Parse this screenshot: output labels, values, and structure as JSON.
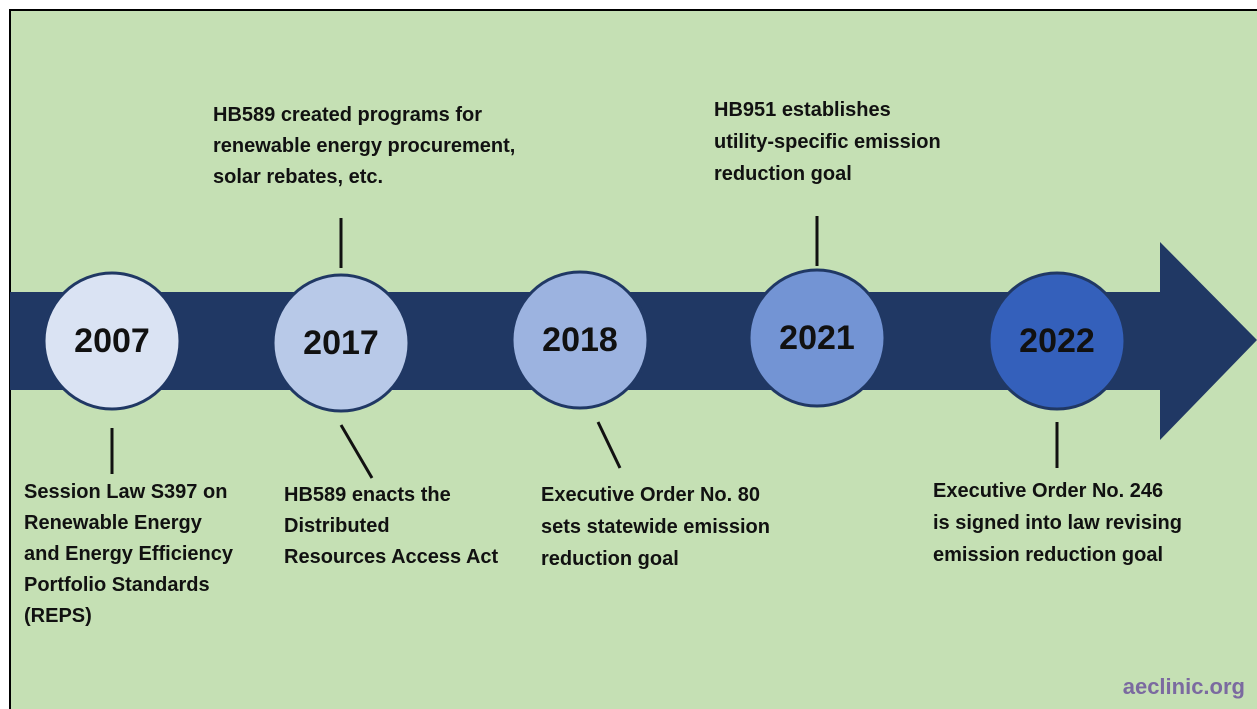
{
  "nodes": [
    {
      "year": "2007",
      "below": [
        "Session Law S397 on",
        "Renewable Energy",
        "and Energy Efficiency",
        "Portfolio Standards",
        "(REPS)"
      ]
    },
    {
      "year": "2017",
      "above": [
        "HB589 created programs for",
        "renewable energy procurement,",
        "solar rebates, etc."
      ],
      "below": [
        "HB589 enacts the",
        "Distributed",
        "Resources Access Act"
      ]
    },
    {
      "year": "2018",
      "below": [
        "Executive Order No. 80",
        "sets statewide emission",
        "reduction goal"
      ]
    },
    {
      "year": "2021",
      "above": [
        "HB951 establishes",
        "utility-specific emission",
        "reduction goal"
      ]
    },
    {
      "year": "2022",
      "below": [
        "Executive Order No. 246",
        "is signed into law revising",
        "emission reduction goal"
      ]
    }
  ],
  "source": "aeclinic.org"
}
